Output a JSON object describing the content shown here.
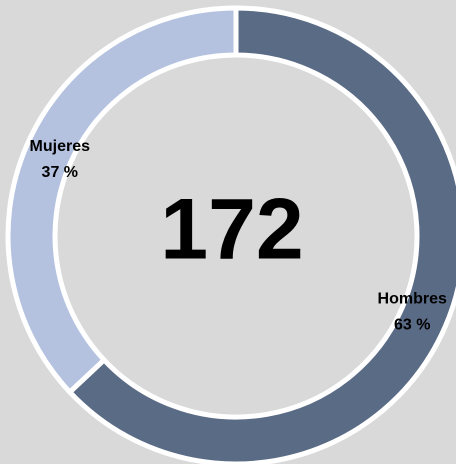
{
  "chart_data": {
    "type": "donut",
    "categories": [
      "Hombres",
      "Mujeres"
    ],
    "values": [
      63,
      37
    ],
    "value_labels": [
      "63 %",
      "37 %"
    ],
    "colors": [
      "#5a6b86",
      "#b4c2e0"
    ],
    "total": 172
  }
}
